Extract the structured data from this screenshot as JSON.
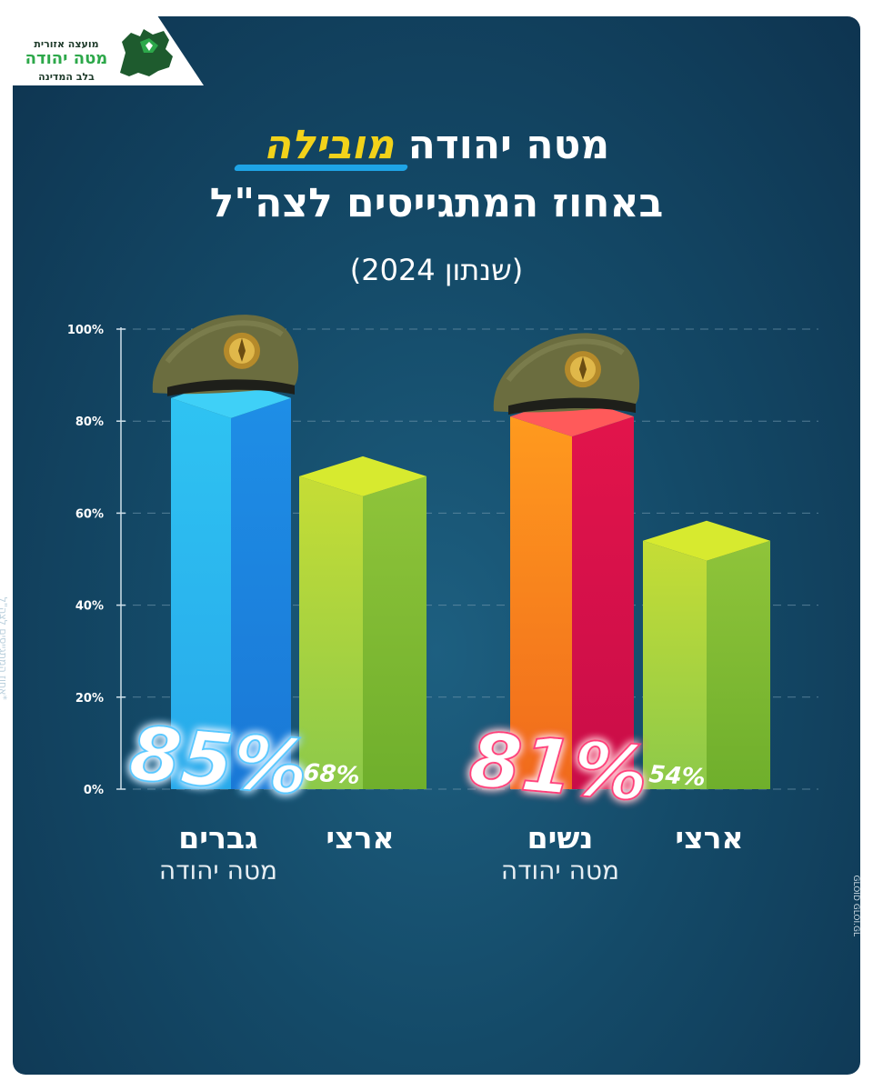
{
  "logo": {
    "line1": "מועצה אזורית",
    "line2": "מטה יהודה",
    "line3": "בלב המדינה"
  },
  "title": {
    "part1": "מטה יהודה ",
    "highlight": "מובילה",
    "line2": "באחוז המתגייסים לצה\"ל"
  },
  "subtitle": "(שנתון 2024)",
  "side_note": "*אחוז המתגייסים לצה\"ל",
  "credit": "GLOID GLOI.GL",
  "colors": {
    "men_area": "#1e9be6",
    "women_area": "#e0144a",
    "national": "#8cc63f",
    "highlight": "#f2d21a",
    "men_glow": "#57c8ff",
    "women_glow": "#ff3d7a"
  },
  "icons": [
    "idf-beret-icon",
    "logo-map-icon"
  ],
  "labels": {
    "men_main": "גברים",
    "men_sub": "מטה יהודה",
    "national_1": "ארצי",
    "women_main": "נשים",
    "women_sub": "מטה יהודה",
    "national_2": "ארצי"
  },
  "chart_data": {
    "type": "bar",
    "ylim": [
      0,
      100
    ],
    "yticks": [
      "0%",
      "20%",
      "40%",
      "60%",
      "80%",
      "100%"
    ],
    "grid": true,
    "categories": [
      "גברים מטה יהודה",
      "ארצי",
      "נשים מטה יהודה",
      "ארצי"
    ],
    "values": [
      85,
      68,
      81,
      54
    ],
    "value_labels": [
      "85%",
      "68%",
      "81%",
      "54%"
    ]
  }
}
